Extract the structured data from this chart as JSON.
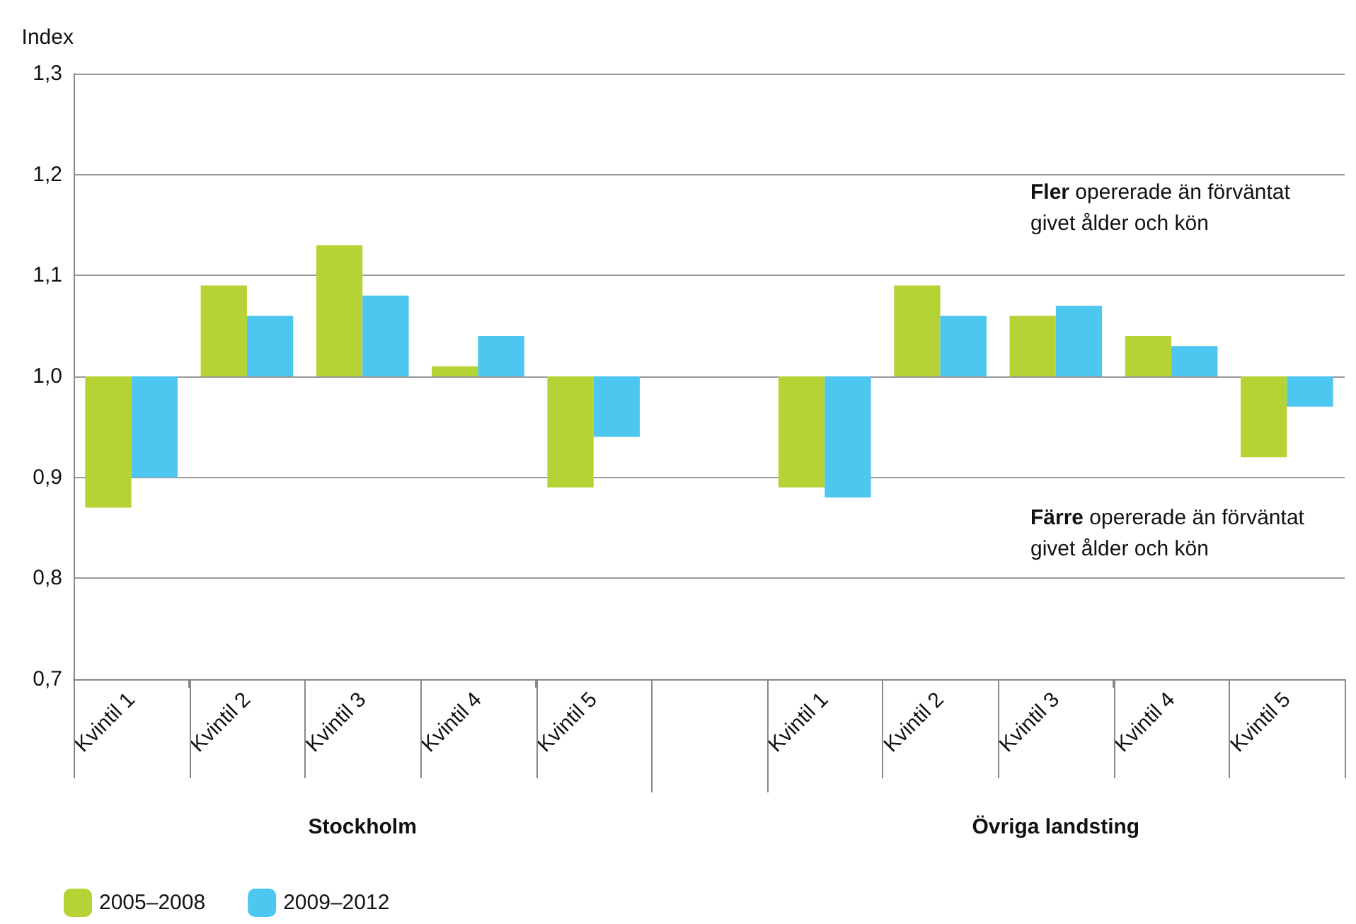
{
  "chart_data": {
    "type": "bar",
    "ylabel": "Index",
    "categories": [
      "Kvintil 1",
      "Kvintil 2",
      "Kvintil 3",
      "Kvintil 4",
      "Kvintil 5",
      null,
      "Kvintil 1",
      "Kvintil 2",
      "Kvintil 3",
      "Kvintil 4",
      "Kvintil 5"
    ],
    "series": [
      {
        "name": "2005–2008",
        "color": "#b5d334",
        "base": [
          1,
          1,
          1,
          1,
          1,
          null,
          1,
          1,
          1,
          1,
          1
        ],
        "values": [
          -0.13,
          0.09,
          0.13,
          0.01,
          -0.11,
          null,
          -0.11,
          0.09,
          0.06,
          0.04,
          -0.08
        ]
      },
      {
        "name": "2009–2012",
        "color": "#4dc6f0",
        "base": [
          1,
          1,
          1,
          1,
          1,
          null,
          1,
          1,
          1,
          1,
          1
        ],
        "values": [
          -0.1,
          0.06,
          0.08,
          0.04,
          -0.06,
          null,
          -0.12,
          0.06,
          0.07,
          0.03,
          -0.03
        ]
      }
    ],
    "ylim": [
      0.7,
      1.3
    ],
    "yticks": [
      {
        "value": 0.7,
        "label": "0,7"
      },
      {
        "value": 0.8,
        "label": "0,8"
      },
      {
        "value": 0.9,
        "label": "0,9"
      },
      {
        "value": 1.0,
        "label": "1,0"
      },
      {
        "value": 1.1,
        "label": "1,1"
      },
      {
        "value": 1.2,
        "label": "1,2"
      },
      {
        "value": 1.3,
        "label": "1,3"
      }
    ],
    "grid": "y",
    "legend": "bottom left",
    "annotations": [
      "Fler opererade än förväntat givet ålder och kön",
      "Färre opererade än förväntat givet ålder och kön",
      "Stockholm",
      "Övriga landsting"
    ]
  }
}
